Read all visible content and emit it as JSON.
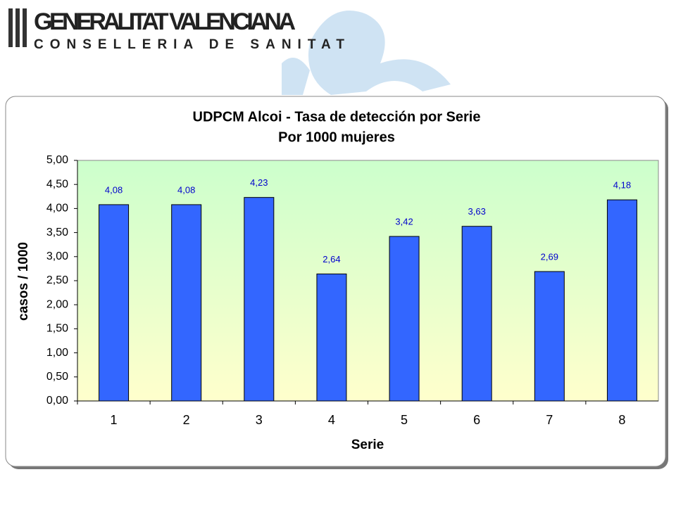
{
  "header": {
    "title": "GENERALITAT VALENCIANA",
    "subtitle": "CONSELLERIA DE SANITAT"
  },
  "chart_data": {
    "type": "bar",
    "title": "UDPCM Alcoi - Tasa de detección por Serie",
    "subtitle": "Por 1000 mujeres",
    "x_label": "Serie",
    "y_label": "casos / 1000",
    "categories": [
      "1",
      "2",
      "3",
      "4",
      "5",
      "6",
      "7",
      "8"
    ],
    "values": [
      4.08,
      4.08,
      4.23,
      2.64,
      3.42,
      3.63,
      2.69,
      4.18
    ],
    "value_labels": [
      "4,08",
      "4,08",
      "4,23",
      "2,64",
      "3,42",
      "3,63",
      "2,69",
      "4,18"
    ],
    "color": "#3366ff",
    "ylim": [
      0,
      5
    ],
    "yticks": [
      {
        "value": 0,
        "label": "0,00"
      },
      {
        "value": 0.5,
        "label": "0,50"
      },
      {
        "value": 1,
        "label": "1,00"
      },
      {
        "value": 1.5,
        "label": "1,50"
      },
      {
        "value": 2,
        "label": "2,00"
      },
      {
        "value": 2.5,
        "label": "2,50"
      },
      {
        "value": 3,
        "label": "3,00"
      },
      {
        "value": 3.5,
        "label": "3,50"
      },
      {
        "value": 4,
        "label": "4,00"
      },
      {
        "value": 4.5,
        "label": "4,50"
      },
      {
        "value": 5,
        "label": "5,00"
      }
    ],
    "grid": false
  }
}
